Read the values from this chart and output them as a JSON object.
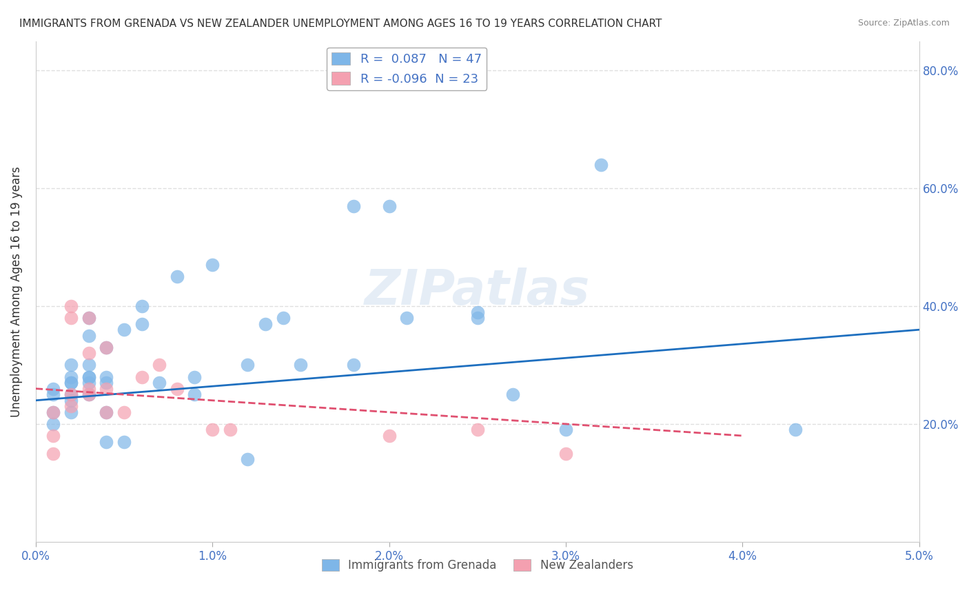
{
  "title": "IMMIGRANTS FROM GRENADA VS NEW ZEALANDER UNEMPLOYMENT AMONG AGES 16 TO 19 YEARS CORRELATION CHART",
  "source": "Source: ZipAtlas.com",
  "xlabel": "",
  "ylabel": "Unemployment Among Ages 16 to 19 years",
  "xlim": [
    0.0,
    0.05
  ],
  "ylim": [
    0.0,
    0.85
  ],
  "xticks": [
    0.0,
    0.01,
    0.02,
    0.03,
    0.04,
    0.05
  ],
  "xticklabels": [
    "0.0%",
    "1.0%",
    "2.0%",
    "3.0%",
    "4.0%",
    "5.0%"
  ],
  "ytick_positions": [
    0.2,
    0.4,
    0.6,
    0.8
  ],
  "ytick_labels": [
    "20.0%",
    "40.0%",
    "60.0%",
    "80.0%"
  ],
  "blue_R": 0.087,
  "blue_N": 47,
  "pink_R": -0.096,
  "pink_N": 23,
  "blue_color": "#7EB6E8",
  "pink_color": "#F4A0B0",
  "blue_line_color": "#1E6FBF",
  "pink_line_color": "#E05070",
  "legend_blue_label": "Immigrants from Grenada",
  "legend_pink_label": "New Zealanders",
  "blue_scatter_x": [
    0.001,
    0.001,
    0.001,
    0.001,
    0.002,
    0.002,
    0.002,
    0.002,
    0.002,
    0.002,
    0.002,
    0.003,
    0.003,
    0.003,
    0.003,
    0.003,
    0.003,
    0.003,
    0.004,
    0.004,
    0.004,
    0.004,
    0.004,
    0.005,
    0.005,
    0.006,
    0.006,
    0.007,
    0.008,
    0.009,
    0.009,
    0.01,
    0.012,
    0.012,
    0.013,
    0.014,
    0.015,
    0.018,
    0.018,
    0.02,
    0.021,
    0.025,
    0.027,
    0.03,
    0.032,
    0.043,
    0.025
  ],
  "blue_scatter_y": [
    0.25,
    0.26,
    0.22,
    0.2,
    0.24,
    0.27,
    0.25,
    0.3,
    0.27,
    0.28,
    0.22,
    0.38,
    0.3,
    0.27,
    0.28,
    0.25,
    0.28,
    0.35,
    0.33,
    0.27,
    0.22,
    0.17,
    0.28,
    0.36,
    0.17,
    0.4,
    0.37,
    0.27,
    0.45,
    0.28,
    0.25,
    0.47,
    0.14,
    0.3,
    0.37,
    0.38,
    0.3,
    0.3,
    0.57,
    0.57,
    0.38,
    0.39,
    0.25,
    0.19,
    0.64,
    0.19,
    0.38
  ],
  "pink_scatter_x": [
    0.001,
    0.001,
    0.001,
    0.002,
    0.002,
    0.002,
    0.002,
    0.003,
    0.003,
    0.003,
    0.003,
    0.004,
    0.004,
    0.004,
    0.005,
    0.006,
    0.007,
    0.008,
    0.01,
    0.011,
    0.02,
    0.025,
    0.03
  ],
  "pink_scatter_y": [
    0.15,
    0.18,
    0.22,
    0.23,
    0.25,
    0.38,
    0.4,
    0.25,
    0.32,
    0.38,
    0.26,
    0.33,
    0.26,
    0.22,
    0.22,
    0.28,
    0.3,
    0.26,
    0.19,
    0.19,
    0.18,
    0.19,
    0.15
  ],
  "blue_line_x": [
    0.0,
    0.05
  ],
  "blue_line_y": [
    0.24,
    0.36
  ],
  "pink_line_x": [
    0.0,
    0.04
  ],
  "pink_line_y": [
    0.26,
    0.18
  ],
  "watermark": "ZIPatlas",
  "background_color": "#FFFFFF",
  "grid_color": "#E0E0E0"
}
